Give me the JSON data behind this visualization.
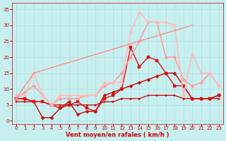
{
  "title": "",
  "xlabel": "Vent moyen/en rafales ( km/h )",
  "ylabel": "",
  "background_color": "#c8eff0",
  "grid_color": "#aadddd",
  "text_color": "#cc0000",
  "xlim": [
    -0.5,
    23.5
  ],
  "ylim": [
    -1,
    37
  ],
  "yticks": [
    0,
    5,
    10,
    15,
    20,
    25,
    30,
    35
  ],
  "xticks": [
    0,
    1,
    2,
    3,
    4,
    5,
    6,
    7,
    8,
    9,
    10,
    11,
    12,
    13,
    14,
    15,
    16,
    17,
    18,
    19,
    20,
    21,
    22,
    23
  ],
  "series": [
    {
      "x": [
        0,
        1,
        2,
        3,
        4,
        5,
        6,
        7,
        8,
        9,
        10,
        11,
        12,
        13,
        14,
        15,
        16,
        17,
        18,
        19,
        20,
        21,
        22,
        23
      ],
      "y": [
        6,
        6,
        6,
        6,
        5,
        5,
        5,
        5,
        5,
        5,
        6,
        6,
        7,
        7,
        7,
        8,
        8,
        8,
        8,
        7,
        7,
        7,
        7,
        7
      ],
      "color": "#cc0000",
      "lw": 0.9,
      "marker": ">",
      "ms": 2.0
    },
    {
      "x": [
        0,
        1,
        2,
        3,
        4,
        5,
        6,
        7,
        8,
        9,
        10,
        11,
        12,
        13,
        14,
        15,
        16,
        17,
        18,
        19,
        20,
        21,
        22,
        23
      ],
      "y": [
        7,
        7,
        6,
        1,
        1,
        4,
        6,
        2,
        3,
        3,
        8,
        9,
        10,
        11,
        12,
        13,
        14,
        15,
        15,
        11,
        7,
        7,
        7,
        8
      ],
      "color": "#cc0000",
      "lw": 1.0,
      "marker": "D",
      "ms": 2.5
    },
    {
      "x": [
        0,
        1,
        2,
        3,
        4,
        5,
        6,
        7,
        8,
        9,
        10,
        11,
        12,
        13,
        14,
        15,
        16,
        17,
        18,
        19,
        20,
        21,
        22,
        23
      ],
      "y": [
        7,
        7,
        6,
        6,
        5,
        4,
        5,
        6,
        4,
        3,
        7,
        8,
        10,
        23,
        17,
        20,
        19,
        15,
        11,
        11,
        7,
        7,
        7,
        8
      ],
      "color": "#dd1111",
      "lw": 1.0,
      "marker": "s",
      "ms": 2.2
    },
    {
      "x": [
        0,
        1,
        2,
        3,
        4,
        5,
        6,
        7,
        8,
        9,
        10,
        11,
        12,
        13,
        14,
        15,
        16,
        17,
        18,
        19,
        20,
        21,
        22,
        23
      ],
      "y": [
        7,
        9,
        11,
        8,
        5,
        7,
        7,
        7,
        8,
        8,
        11,
        12,
        15,
        20,
        25,
        31,
        31,
        20,
        20,
        13,
        11,
        12,
        15,
        11
      ],
      "color": "#ff9999",
      "lw": 1.1,
      "marker": "D",
      "ms": 2.5
    },
    {
      "x": [
        0,
        1,
        2,
        3,
        4,
        5,
        6,
        7,
        8,
        9,
        10,
        11,
        12,
        13,
        14,
        15,
        16,
        17,
        18,
        19,
        20,
        21,
        22,
        23
      ],
      "y": [
        8,
        8,
        15,
        8,
        5,
        8,
        8,
        8,
        8,
        8,
        12,
        12,
        12,
        28,
        34,
        31,
        31,
        31,
        30,
        8,
        21,
        15,
        15,
        11
      ],
      "color": "#ffbbbb",
      "lw": 1.2,
      "marker": "D",
      "ms": 2.5
    },
    {
      "x": [
        0,
        2,
        20
      ],
      "y": [
        7,
        15,
        30
      ],
      "color": "#ff8888",
      "lw": 1.0,
      "marker": null,
      "ms": 0
    }
  ]
}
